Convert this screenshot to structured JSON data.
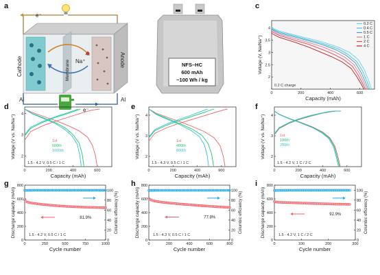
{
  "figure": {
    "panels": [
      "a",
      "b",
      "c",
      "d",
      "e",
      "f",
      "g",
      "h",
      "i"
    ]
  },
  "schematic": {
    "electron_top": "e⁻",
    "electron_bottom": "e⁻",
    "cathode": "Cathode",
    "anode": "Anode",
    "membrane": "Membrane",
    "ion": "Na⁺",
    "al_left": "Al",
    "al_right": "Al"
  },
  "pouch": {
    "line1": "NFS–HC",
    "line2": "600 mAh",
    "line3": "~100 Wh / kg"
  },
  "colors": {
    "red": "#f0626b",
    "green": "#19c96c",
    "cyan": "#2cc4da",
    "blue": "#2f95e6",
    "ce_blue": "#1aa6e8",
    "c_rate": [
      "#67d4e6",
      "#48bfe2",
      "#2e9fd7",
      "#f07a87",
      "#ea4654",
      "#c91c24"
    ]
  },
  "chart_data": [
    {
      "panel": "c",
      "type": "line",
      "xlabel": "Capacity (mAh)",
      "ylabel": "Voltage (V, Na/Na⁺)",
      "xlim": [
        0,
        700
      ],
      "ylim": [
        1.5,
        4.3
      ],
      "xticks": [
        0,
        200,
        400,
        600
      ],
      "yticks": [
        2.0,
        2.5,
        3.0,
        3.5,
        4.0
      ],
      "annotation": "0.2 C charge",
      "legend_position": "top-right",
      "series": [
        {
          "name": "0.2 C",
          "x": [
            0,
            50,
            150,
            250,
            350,
            450,
            530,
            590,
            630,
            660,
            680
          ],
          "y": [
            4.0,
            3.88,
            3.72,
            3.57,
            3.42,
            3.22,
            3.0,
            2.7,
            2.3,
            1.85,
            1.5
          ]
        },
        {
          "name": "0.4 C",
          "x": [
            0,
            50,
            150,
            250,
            350,
            450,
            520,
            580,
            620,
            650,
            668
          ],
          "y": [
            3.97,
            3.84,
            3.68,
            3.52,
            3.36,
            3.15,
            2.92,
            2.62,
            2.22,
            1.8,
            1.5
          ]
        },
        {
          "name": "0.5 C",
          "x": [
            0,
            50,
            150,
            250,
            350,
            440,
            510,
            570,
            610,
            640,
            658
          ],
          "y": [
            3.94,
            3.8,
            3.64,
            3.48,
            3.31,
            3.1,
            2.87,
            2.57,
            2.17,
            1.77,
            1.5
          ]
        },
        {
          "name": "1 C",
          "x": [
            0,
            50,
            150,
            250,
            350,
            430,
            500,
            560,
            600,
            630,
            648
          ],
          "y": [
            3.9,
            3.75,
            3.58,
            3.41,
            3.22,
            3.02,
            2.8,
            2.5,
            2.12,
            1.75,
            1.5
          ]
        },
        {
          "name": "2 C",
          "x": [
            0,
            50,
            150,
            250,
            340,
            420,
            490,
            550,
            590,
            620,
            638
          ],
          "y": [
            3.85,
            3.7,
            3.51,
            3.33,
            3.13,
            2.93,
            2.71,
            2.43,
            2.06,
            1.72,
            1.5
          ]
        },
        {
          "name": "4 C",
          "x": [
            0,
            50,
            150,
            250,
            330,
            410,
            480,
            540,
            580,
            610,
            628
          ],
          "y": [
            3.78,
            3.62,
            3.43,
            3.22,
            3.02,
            2.82,
            2.61,
            2.35,
            2.0,
            1.7,
            1.5
          ]
        }
      ]
    },
    {
      "panel": "d",
      "type": "line",
      "xlabel": "Capacity (mAh)",
      "ylabel": "Voltage (V vs. Na/Na⁺)",
      "xlim": [
        0,
        720
      ],
      "ylim": [
        1.5,
        4.3
      ],
      "xticks": [
        0,
        200,
        400,
        600
      ],
      "yticks": [
        2,
        3,
        4
      ],
      "annotation": "1.5 - 4.2 V, 0.5 C / 1 C",
      "legend_position": "bottom-center",
      "series": [
        {
          "name": "1st",
          "charge": {
            "x": [
              0,
              50,
              150,
              250,
              350,
              450,
              550,
              620
            ],
            "y": [
              2.75,
              3.15,
              3.42,
              3.62,
              3.8,
              3.98,
              4.15,
              4.2
            ]
          },
          "discharge": {
            "x": [
              0,
              60,
              160,
              260,
              360,
              450,
              520,
              560,
              585,
              600
            ],
            "y": [
              4.2,
              4.05,
              3.85,
              3.65,
              3.42,
              3.18,
              2.88,
              2.5,
              2.0,
              1.5
            ]
          }
        },
        {
          "name": "500th",
          "charge": {
            "x": [
              0,
              50,
              150,
              250,
              350,
              420,
              460
            ],
            "y": [
              2.95,
              3.3,
              3.58,
              3.8,
              3.98,
              4.12,
              4.2
            ]
          },
          "discharge": {
            "x": [
              0,
              60,
              160,
              260,
              340,
              400,
              450,
              475,
              490
            ],
            "y": [
              4.2,
              4.0,
              3.78,
              3.55,
              3.3,
              3.0,
              2.6,
              2.1,
              1.5
            ]
          }
        },
        {
          "name": "1000th",
          "charge": {
            "x": [
              0,
              50,
              150,
              250,
              350,
              410,
              440
            ],
            "y": [
              3.0,
              3.35,
              3.62,
              3.84,
              4.02,
              4.14,
              4.2
            ]
          },
          "discharge": {
            "x": [
              0,
              60,
              160,
              260,
              330,
              390,
              435,
              455,
              468
            ],
            "y": [
              4.2,
              3.98,
              3.75,
              3.5,
              3.25,
              2.95,
              2.55,
              2.05,
              1.5
            ]
          }
        }
      ]
    },
    {
      "panel": "e",
      "type": "line",
      "xlabel": "Capacity (mAh)",
      "ylabel": "Voltage (V vs. Na/Na⁺)",
      "xlim": [
        0,
        720
      ],
      "ylim": [
        1.5,
        4.4
      ],
      "xticks": [
        0,
        200,
        400,
        600
      ],
      "yticks": [
        2,
        3,
        4
      ],
      "annotation": "1.5 - 4.3 V, 0.5 C / 1 C",
      "legend_position": "bottom-center",
      "series": [
        {
          "name": "1st",
          "charge": {
            "x": [
              0,
              50,
              150,
              250,
              350,
              450,
              550,
              620,
              650
            ],
            "y": [
              2.75,
              3.12,
              3.4,
              3.6,
              3.78,
              3.96,
              4.14,
              4.26,
              4.3
            ]
          },
          "discharge": {
            "x": [
              0,
              60,
              160,
              260,
              360,
              460,
              540,
              590,
              615,
              630
            ],
            "y": [
              4.3,
              4.1,
              3.88,
              3.68,
              3.45,
              3.2,
              2.9,
              2.5,
              2.0,
              1.5
            ]
          }
        },
        {
          "name": "400th",
          "charge": {
            "x": [
              0,
              50,
              150,
              250,
              350,
              450,
              510,
              540
            ],
            "y": [
              2.9,
              3.25,
              3.52,
              3.74,
              3.93,
              4.12,
              4.25,
              4.3
            ]
          },
          "discharge": {
            "x": [
              0,
              60,
              160,
              260,
              360,
              440,
              490,
              520,
              535
            ],
            "y": [
              4.3,
              4.06,
              3.82,
              3.58,
              3.32,
              3.02,
              2.62,
              2.1,
              1.5
            ]
          }
        },
        {
          "name": "800th",
          "charge": {
            "x": [
              0,
              50,
              150,
              250,
              350,
              430,
              470,
              490
            ],
            "y": [
              2.95,
              3.3,
              3.58,
              3.8,
              4.0,
              4.18,
              4.27,
              4.3
            ]
          },
          "discharge": {
            "x": [
              0,
              60,
              160,
              260,
              350,
              420,
              460,
              482,
              495
            ],
            "y": [
              4.3,
              4.04,
              3.78,
              3.53,
              3.25,
              2.95,
              2.55,
              2.05,
              1.5
            ]
          }
        }
      ]
    },
    {
      "panel": "f",
      "type": "line",
      "xlabel": "Capacity (mAh)",
      "ylabel": "Voltage (V vs. Na/Na⁺)",
      "xlim": [
        0,
        720
      ],
      "ylim": [
        1.5,
        4.4
      ],
      "xticks": [
        0,
        200,
        400,
        600
      ],
      "yticks": [
        2,
        3,
        4
      ],
      "annotation": "1.5 - 4.2 V, 1 C / 2 C",
      "legend_position": "bottom-left",
      "series": [
        {
          "name": "1st",
          "charge": {
            "x": [
              0,
              40,
              120,
              200,
              300,
              400,
              480,
              520,
              550
            ],
            "y": [
              3.05,
              3.35,
              3.6,
              3.78,
              3.95,
              4.1,
              4.18,
              4.2,
              4.2
            ]
          },
          "discharge": {
            "x": [
              0,
              40,
              120,
              220,
              320,
              400,
              460,
              500,
              525,
              545
            ],
            "y": [
              4.2,
              4.05,
              3.85,
              3.65,
              3.42,
              3.18,
              2.9,
              2.5,
              2.0,
              1.5
            ]
          }
        },
        {
          "name": "100th",
          "charge": {
            "x": [
              0,
              40,
              120,
              200,
              300,
              400,
              470,
              510,
              540
            ],
            "y": [
              3.08,
              3.38,
              3.62,
              3.8,
              3.97,
              4.11,
              4.18,
              4.2,
              4.2
            ]
          },
          "discharge": {
            "x": [
              0,
              40,
              120,
              220,
              320,
              400,
              455,
              495,
              518,
              538
            ],
            "y": [
              4.2,
              4.04,
              3.84,
              3.63,
              3.4,
              3.15,
              2.88,
              2.48,
              1.98,
              1.5
            ]
          }
        },
        {
          "name": "200th",
          "charge": {
            "x": [
              0,
              40,
              120,
              200,
              300,
              400,
              465,
              505,
              530
            ],
            "y": [
              3.1,
              3.4,
              3.64,
              3.82,
              3.99,
              4.12,
              4.19,
              4.2,
              4.2
            ]
          },
          "discharge": {
            "x": [
              0,
              40,
              120,
              220,
              320,
              395,
              450,
              490,
              512,
              530
            ],
            "y": [
              4.2,
              4.03,
              3.83,
              3.62,
              3.38,
              3.13,
              2.86,
              2.45,
              1.96,
              1.5
            ]
          }
        }
      ]
    },
    {
      "panel": "g",
      "type": "scatter",
      "xlabel": "Cycle number",
      "ylabel": "Discharge capacity (mAh)",
      "y2label": "Columbic efficiency (%)",
      "xlim": [
        0,
        1000
      ],
      "ylim": [
        0,
        800
      ],
      "y2lim": [
        0,
        110
      ],
      "xticks": [
        0,
        250,
        500,
        750,
        1000
      ],
      "yticks": [
        0,
        200,
        400,
        600,
        800
      ],
      "y2ticks": [
        0,
        20,
        40,
        60,
        80,
        100
      ],
      "retention": "81.9%",
      "annotation": "1.5 - 4.2 V, 0.5 C / 1 C",
      "capacity_x": [
        0,
        10,
        30,
        60,
        100,
        150,
        200,
        300,
        400,
        500,
        600,
        700,
        800,
        900,
        1000
      ],
      "capacity_y": [
        585,
        570,
        555,
        545,
        537,
        530,
        522,
        510,
        500,
        492,
        486,
        481,
        477,
        474,
        471
      ],
      "efficiency_x": [
        0,
        100,
        200,
        300,
        400,
        500,
        600,
        700,
        800,
        900,
        1000
      ],
      "efficiency_y": [
        99.6,
        99.8,
        99.8,
        99.8,
        99.8,
        99.8,
        99.8,
        99.8,
        99.8,
        99.8,
        99.8
      ]
    },
    {
      "panel": "h",
      "type": "scatter",
      "xlabel": "Cycle number",
      "ylabel": "Discharge capacity (mAh)",
      "y2label": "Columbic efficiency (%)",
      "xlim": [
        0,
        800
      ],
      "ylim": [
        0,
        800
      ],
      "y2lim": [
        0,
        110
      ],
      "xticks": [
        0,
        200,
        400,
        600,
        800
      ],
      "yticks": [
        0,
        200,
        400,
        600,
        800
      ],
      "y2ticks": [
        0,
        20,
        40,
        60,
        80,
        100
      ],
      "retention": "77.8%",
      "annotation": "1.5 - 4.3 V, 0.5 C / 1 C",
      "capacity_x": [
        0,
        10,
        30,
        60,
        100,
        150,
        200,
        300,
        400,
        500,
        600,
        700,
        800
      ],
      "capacity_y": [
        610,
        595,
        580,
        568,
        558,
        548,
        540,
        527,
        515,
        503,
        493,
        483,
        475
      ],
      "efficiency_x": [
        0,
        100,
        200,
        300,
        400,
        500,
        600,
        700,
        800
      ],
      "efficiency_y": [
        99.5,
        99.7,
        99.7,
        99.7,
        99.7,
        99.7,
        99.7,
        99.7,
        99.7
      ]
    },
    {
      "panel": "i",
      "type": "scatter",
      "xlabel": "Cycle number",
      "ylabel": "Discharge capacity (mAh)",
      "y2label": "Columbic efficiency (%)",
      "xlim": [
        0,
        300
      ],
      "ylim": [
        0,
        800
      ],
      "y2lim": [
        0,
        110
      ],
      "xticks": [
        0,
        100,
        200,
        300
      ],
      "yticks": [
        0,
        200,
        400,
        600,
        800
      ],
      "y2ticks": [
        0,
        20,
        40,
        60,
        80,
        100
      ],
      "retention": "92.9%",
      "annotation": "1.5 - 4.2 V, 1 C / 2 C",
      "capacity_x": [
        0,
        5,
        20,
        50,
        80,
        110,
        140,
        170,
        200,
        230,
        260,
        280
      ],
      "capacity_y": [
        560,
        555,
        550,
        546,
        542,
        538,
        534,
        530,
        527,
        524,
        522,
        520
      ],
      "efficiency_x": [
        0,
        50,
        100,
        150,
        200,
        250,
        280
      ],
      "efficiency_y": [
        99.5,
        99.8,
        99.8,
        99.8,
        99.8,
        99.8,
        99.8
      ]
    }
  ]
}
